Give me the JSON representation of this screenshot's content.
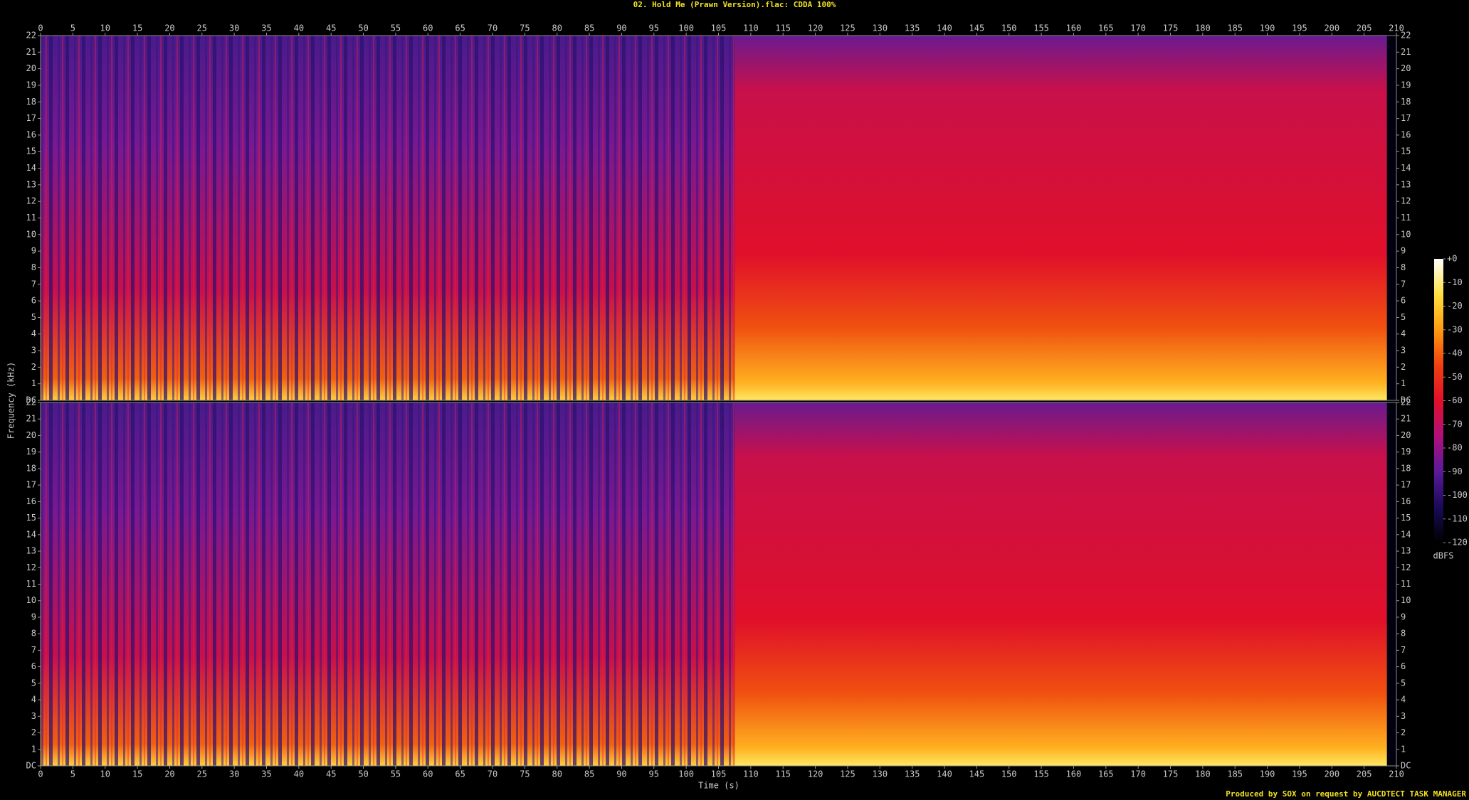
{
  "chart_data": {
    "type": "spectrogram",
    "title": "02. Hold Me (Prawn Version).flac: CDDA 100%",
    "xlabel": "Time (s)",
    "ylabel": "Frequency (kHz)",
    "xlim": [
      0,
      210
    ],
    "xticks": [
      0,
      5,
      10,
      15,
      20,
      25,
      30,
      35,
      40,
      45,
      50,
      55,
      60,
      65,
      70,
      75,
      80,
      85,
      90,
      95,
      100,
      105,
      110,
      115,
      120,
      125,
      130,
      135,
      140,
      145,
      150,
      155,
      160,
      165,
      170,
      175,
      180,
      185,
      190,
      195,
      200,
      205,
      210
    ],
    "ylim": [
      0,
      22
    ],
    "yticks": [
      {
        "value": 0,
        "label": "DC"
      },
      1,
      2,
      3,
      4,
      5,
      6,
      7,
      8,
      9,
      10,
      11,
      12,
      13,
      14,
      15,
      16,
      17,
      18,
      19,
      20,
      21,
      22
    ],
    "colorbar": {
      "label": "dBFS",
      "lim": [
        -120,
        0
      ],
      "ticks": [
        {
          "value": 0,
          "label": "+0"
        },
        -10,
        -20,
        -30,
        -40,
        -50,
        -60,
        -70,
        -80,
        -90,
        -100,
        -110,
        -120
      ],
      "colormap": [
        "#000000",
        "#1a0a5a",
        "#5a1a9a",
        "#b0107a",
        "#e0102a",
        "#f04010",
        "#ff9a10",
        "#ffe040",
        "#ffffff"
      ]
    },
    "footer": "Produced by SOX on request by AUCDTECT TASK MANAGER"
  }
}
